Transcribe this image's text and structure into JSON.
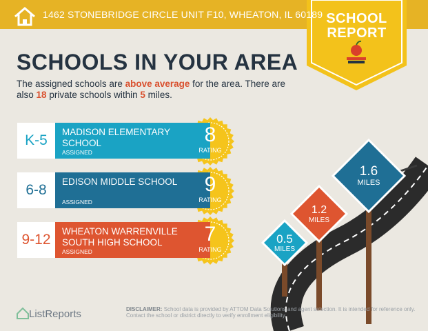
{
  "header": {
    "address": "1462 STONEBRIDGE CIRCLE UNIT F10, WHEATON, IL 60189"
  },
  "badge": {
    "line1": "SCHOOL",
    "line2": "REPORT"
  },
  "title": "SCHOOLS IN YOUR AREA",
  "intro": [
    "The assigned schools are ",
    "above average",
    " for the area. There are also ",
    "18",
    " private schools within ",
    "5",
    " miles."
  ],
  "schools": [
    {
      "grades": "K-5",
      "name": "MADISON ELEMENTARY SCHOOL",
      "status": "ASSIGNED",
      "rating": 8,
      "rating_label": "RATING"
    },
    {
      "grades": "6-8",
      "name": "EDISON MIDDLE SCHOOL",
      "status": "ASSIGNED",
      "rating": 9,
      "rating_label": "RATING"
    },
    {
      "grades": "9-12",
      "name": "WHEATON WARRENVILLE SOUTH HIGH SCHOOL",
      "status": "ASSIGNED",
      "rating": 7,
      "rating_label": "RATING"
    }
  ],
  "signs": [
    {
      "distance": 0.5,
      "unit": "MILES"
    },
    {
      "distance": 1.2,
      "unit": "MILES"
    },
    {
      "distance": 1.6,
      "unit": "MILES"
    }
  ],
  "logo": "ListReports",
  "disclaimer": {
    "label": "DISCLAIMER:",
    "text": "School data is provided by ATTOM Data Solutions and agent selection. It is intended for reference only. Contact the school or district directly to verify enrollment eligibility."
  }
}
